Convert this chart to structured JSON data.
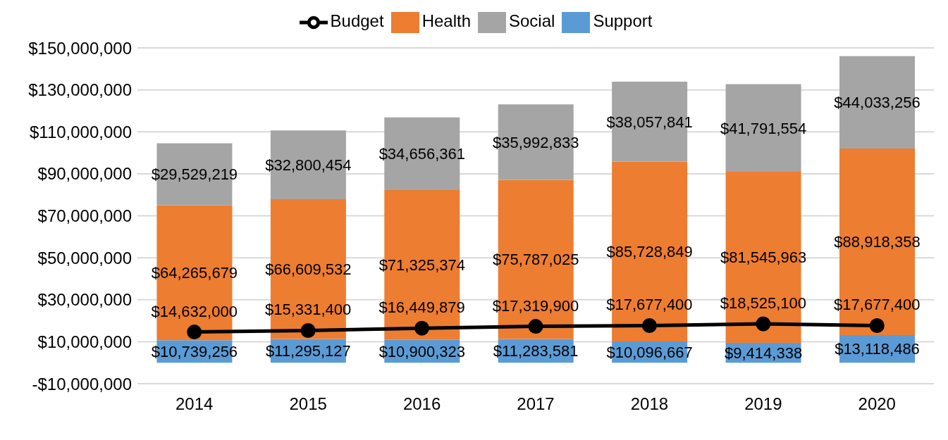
{
  "chart_data": {
    "type": "bar",
    "stacked": true,
    "categories": [
      "2014",
      "2015",
      "2016",
      "2017",
      "2018",
      "2019",
      "2020"
    ],
    "series": [
      {
        "name": "Support",
        "color": "#5b9bd5",
        "values": [
          10739256,
          11295127,
          10900323,
          11283581,
          10096667,
          9414338,
          13118486
        ],
        "value_labels": [
          "$10,739,256",
          "$11,295,127",
          "$10,900,323",
          "$11,283,581",
          "$10,096,667",
          "$9,414,338",
          "$13,118,486"
        ]
      },
      {
        "name": "Health",
        "color": "#ed7d31",
        "values": [
          64265679,
          66609532,
          71325374,
          75787025,
          85728849,
          81545963,
          88918358
        ],
        "value_labels": [
          "$64,265,679",
          "$66,609,532",
          "$71,325,374",
          "$75,787,025",
          "$85,728,849",
          "$81,545,963",
          "$88,918,358"
        ]
      },
      {
        "name": "Social",
        "color": "#a5a5a5",
        "values": [
          29529219,
          32800454,
          34656361,
          35992833,
          38057841,
          41791554,
          44033256
        ],
        "value_labels": [
          "$29,529,219",
          "$32,800,454",
          "$34,656,361",
          "$35,992,833",
          "$38,057,841",
          "$41,791,554",
          "$44,033,256"
        ]
      },
      {
        "name": "Budget",
        "type": "line",
        "color": "#000000",
        "marker": "circle",
        "values": [
          14632000,
          15331400,
          16449879,
          17319900,
          17677400,
          18525100,
          17677400
        ],
        "value_labels": [
          "$14,632,000",
          "$15,331,400",
          "$16,449,879",
          "$17,319,900",
          "$17,677,400",
          "$18,525,100",
          "$17,677,400"
        ]
      }
    ],
    "ylim": [
      -10000000,
      150000000
    ],
    "yticks": [
      {
        "value": -10000000,
        "label": "-$10,000,000"
      },
      {
        "value": 10000000,
        "label": "$10,000,000"
      },
      {
        "value": 30000000,
        "label": "$30,000,000"
      },
      {
        "value": 50000000,
        "label": "$50,000,000"
      },
      {
        "value": 70000000,
        "label": "$70,000,000"
      },
      {
        "value": 90000000,
        "label": "$90,000,000"
      },
      {
        "value": 110000000,
        "label": "$110,000,000"
      },
      {
        "value": 130000000,
        "label": "$130,000,000"
      },
      {
        "value": 150000000,
        "label": "$150,000,000"
      }
    ],
    "grid": "y",
    "legend": "top"
  }
}
